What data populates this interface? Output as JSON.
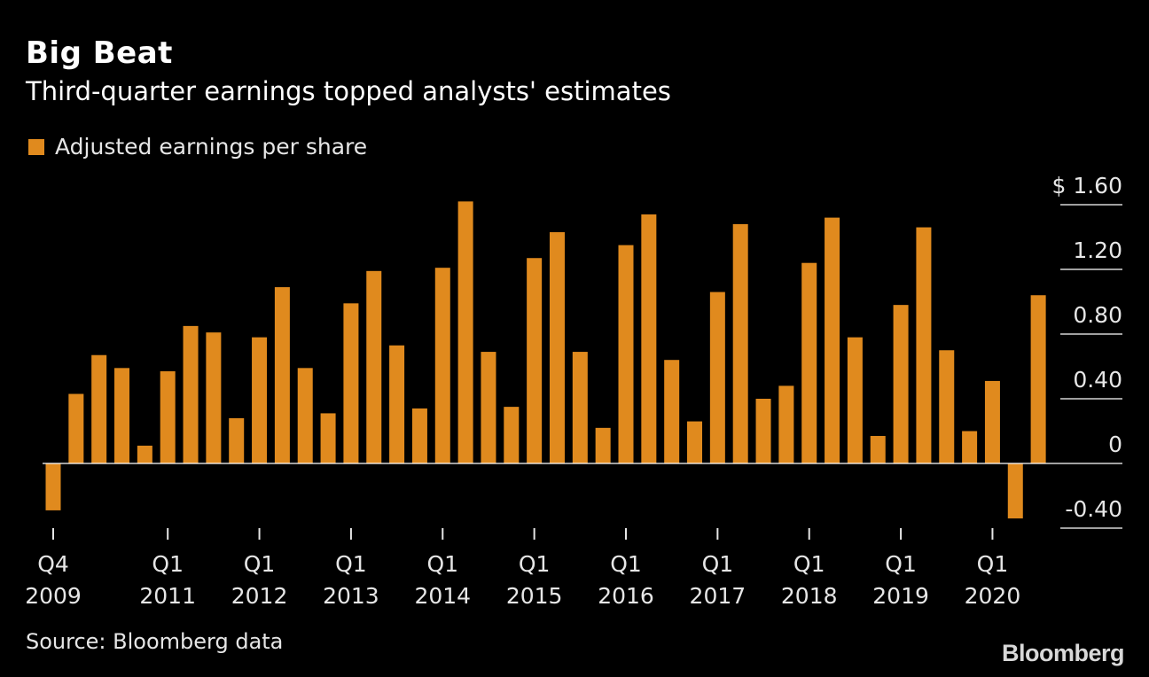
{
  "title": "Big Beat",
  "subtitle": "Third-quarter earnings topped analysts' estimates",
  "legend_label": "Adjusted earnings per share",
  "source": "Source: Bloomberg data",
  "logo": "Bloomberg",
  "colors": {
    "bar": "#e08a1e",
    "background": "#000000",
    "grid": "#ffffff"
  },
  "chart_data": {
    "type": "bar",
    "title": "Big Beat",
    "subtitle": "Third-quarter earnings topped analysts' estimates",
    "legend": [
      "Adjusted earnings per share"
    ],
    "ylim": [
      -0.4,
      1.6
    ],
    "yticks": [
      {
        "value": 1.6,
        "label": "$ 1.60"
      },
      {
        "value": 1.2,
        "label": "1.20"
      },
      {
        "value": 0.8,
        "label": "0.80"
      },
      {
        "value": 0.4,
        "label": "0.40"
      },
      {
        "value": 0,
        "label": "0"
      },
      {
        "value": -0.4,
        "label": "-0.40"
      }
    ],
    "xticks": [
      {
        "index": 0,
        "top": "Q4",
        "bottom": "2009"
      },
      {
        "index": 5,
        "top": "Q1",
        "bottom": "2011"
      },
      {
        "index": 9,
        "top": "Q1",
        "bottom": "2012"
      },
      {
        "index": 13,
        "top": "Q1",
        "bottom": "2013"
      },
      {
        "index": 17,
        "top": "Q1",
        "bottom": "2014"
      },
      {
        "index": 21,
        "top": "Q1",
        "bottom": "2015"
      },
      {
        "index": 25,
        "top": "Q1",
        "bottom": "2016"
      },
      {
        "index": 29,
        "top": "Q1",
        "bottom": "2017"
      },
      {
        "index": 33,
        "top": "Q1",
        "bottom": "2018"
      },
      {
        "index": 37,
        "top": "Q1",
        "bottom": "2019"
      },
      {
        "index": 41,
        "top": "Q1",
        "bottom": "2020"
      }
    ],
    "series": [
      {
        "name": "Adjusted earnings per share",
        "values": [
          -0.29,
          0.43,
          0.67,
          0.59,
          0.11,
          0.57,
          0.85,
          0.81,
          0.28,
          0.78,
          1.09,
          0.59,
          0.31,
          0.99,
          1.19,
          0.73,
          0.34,
          1.21,
          1.62,
          0.69,
          0.35,
          1.27,
          1.43,
          0.69,
          0.22,
          1.35,
          1.54,
          0.64,
          0.26,
          1.06,
          1.48,
          0.4,
          0.48,
          1.24,
          1.52,
          0.78,
          0.17,
          0.98,
          1.46,
          0.7,
          0.2,
          0.51,
          -0.34,
          1.04
        ]
      }
    ]
  }
}
